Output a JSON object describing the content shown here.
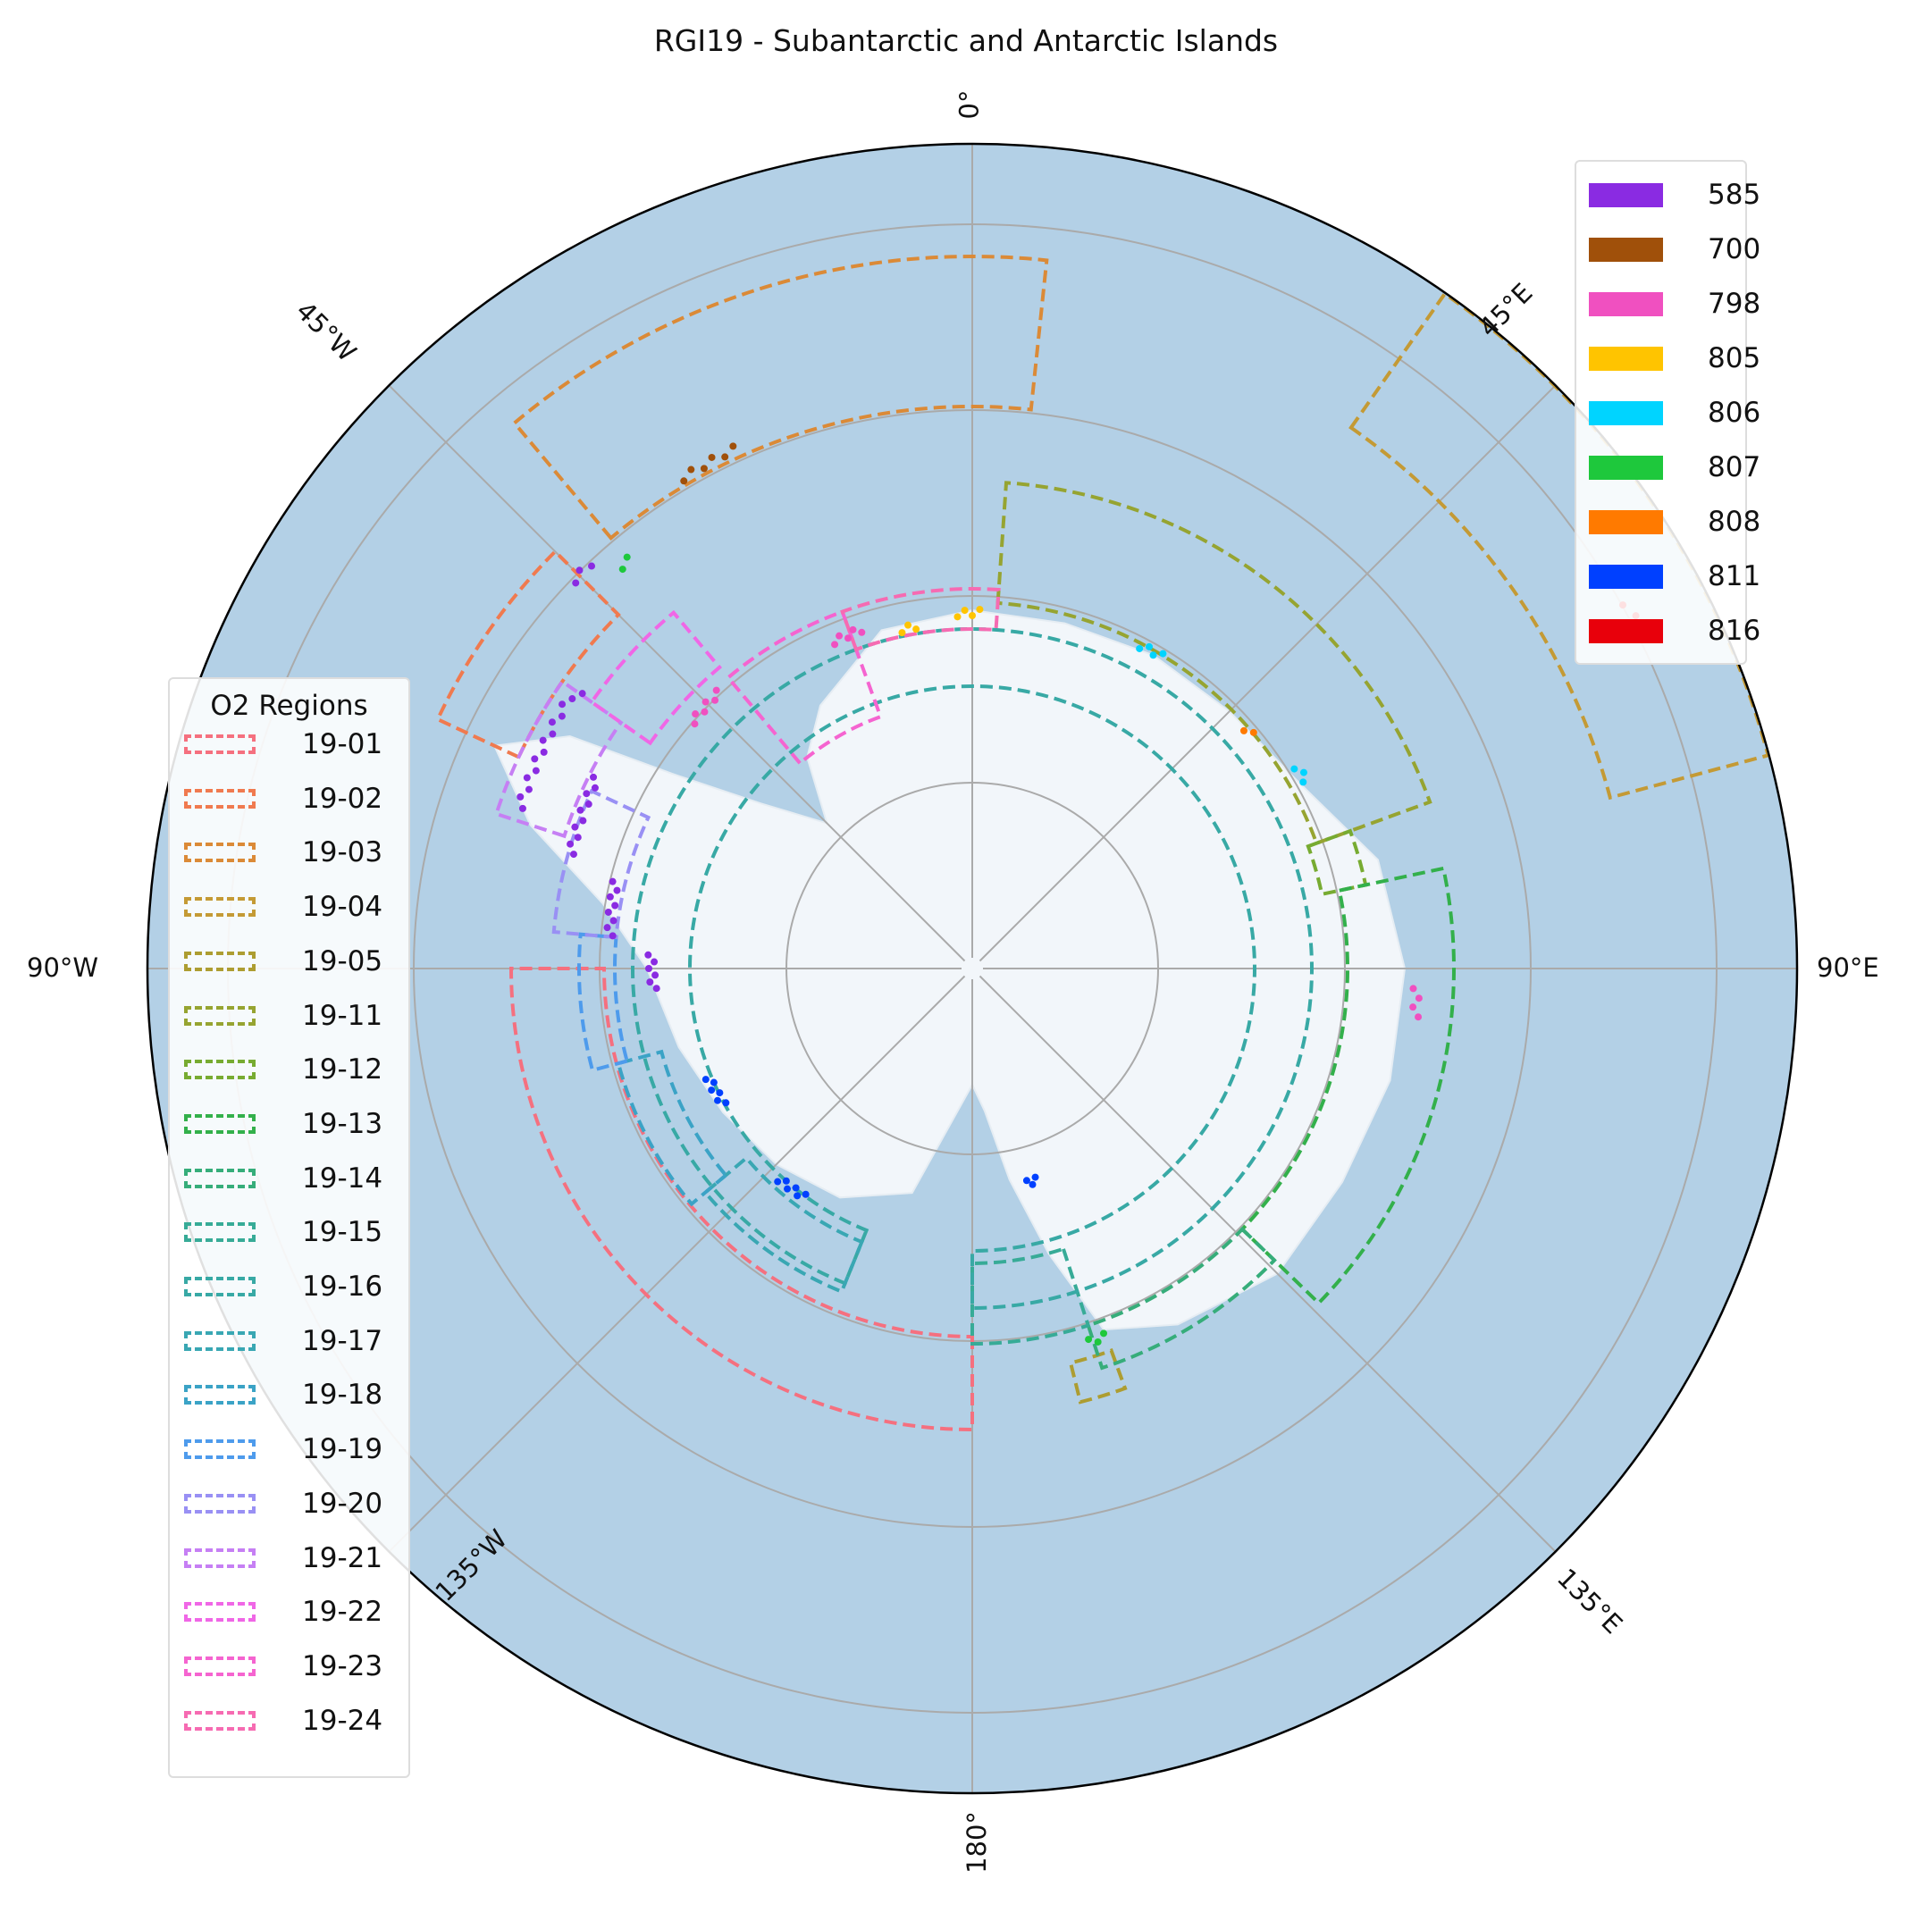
{
  "title": "RGI19 - Subantarctic and Antarctic Islands",
  "ticks": {
    "top": "0°",
    "right": "90°E",
    "left": "90°W",
    "bottom": "180°",
    "nw": "45°W",
    "ne": "45°E",
    "se": "135°E",
    "sw": "135°W"
  },
  "value_legend": [
    {
      "label": "585",
      "color": "#8a2be2"
    },
    {
      "label": "700",
      "color": "#a0500a"
    },
    {
      "label": "798",
      "color": "#f050c0"
    },
    {
      "label": "805",
      "color": "#ffc400"
    },
    {
      "label": "806",
      "color": "#00d4ff"
    },
    {
      "label": "807",
      "color": "#1ec83c"
    },
    {
      "label": "808",
      "color": "#ff7a00"
    },
    {
      "label": "811",
      "color": "#0040ff"
    },
    {
      "label": "816",
      "color": "#e8000b"
    }
  ],
  "region_legend": {
    "title": "O2 Regions",
    "items": [
      {
        "label": "19-01",
        "color": "#f5707f"
      },
      {
        "label": "19-02",
        "color": "#f07a4f"
      },
      {
        "label": "19-03",
        "color": "#db8a37"
      },
      {
        "label": "19-04",
        "color": "#c49a35"
      },
      {
        "label": "19-05",
        "color": "#ad9d31"
      },
      {
        "label": "19-11",
        "color": "#96a431"
      },
      {
        "label": "19-12",
        "color": "#77ab31"
      },
      {
        "label": "19-13",
        "color": "#33b04b"
      },
      {
        "label": "19-14",
        "color": "#36ad7a"
      },
      {
        "label": "19-15",
        "color": "#37ab97"
      },
      {
        "label": "19-16",
        "color": "#38a9a5"
      },
      {
        "label": "19-17",
        "color": "#39a7b3"
      },
      {
        "label": "19-18",
        "color": "#3ba3c6"
      },
      {
        "label": "19-19",
        "color": "#4e9bec"
      },
      {
        "label": "19-20",
        "color": "#9990f4"
      },
      {
        "label": "19-21",
        "color": "#c67ff4"
      },
      {
        "label": "19-22",
        "color": "#f067e6"
      },
      {
        "label": "19-23",
        "color": "#f564d0"
      },
      {
        "label": "19-24",
        "color": "#f66bb2"
      }
    ]
  },
  "colors": {
    "ocean": "#b3d0e6",
    "ice": "#f2f6fa",
    "grid": "#aaaaaa"
  }
}
